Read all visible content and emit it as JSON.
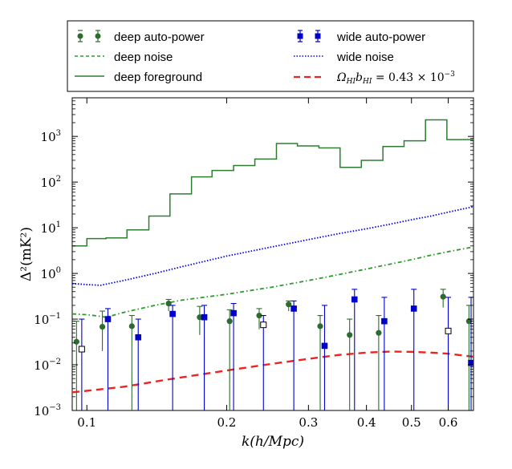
{
  "chart_data": {
    "type": "line",
    "title": "",
    "xlabel": "k(h/Mpc)",
    "ylabel": "Δ²(mK²)",
    "xscale": "log",
    "yscale": "log",
    "xlim": [
      0.093,
      0.68
    ],
    "ylim": [
      0.001,
      7000
    ],
    "x_ticks": [
      {
        "value": 0.1,
        "label": "0.1"
      },
      {
        "value": 0.2,
        "label": "0.2"
      },
      {
        "value": 0.3,
        "label": "0.3"
      },
      {
        "value": 0.4,
        "label": "0.4"
      },
      {
        "value": 0.5,
        "label": "0.5"
      },
      {
        "value": 0.6,
        "label": "0.6"
      }
    ],
    "y_ticks": [
      {
        "value": 0.001,
        "base": "10",
        "exp": "−3"
      },
      {
        "value": 0.01,
        "base": "10",
        "exp": "−2"
      },
      {
        "value": 0.1,
        "base": "10",
        "exp": "−1"
      },
      {
        "value": 1,
        "base": "10",
        "exp": "0"
      },
      {
        "value": 10,
        "base": "10",
        "exp": "1"
      },
      {
        "value": 100,
        "base": "10",
        "exp": "2"
      },
      {
        "value": 1000,
        "base": "10",
        "exp": "3"
      }
    ],
    "legend": {
      "position": "top (outside, above plot)",
      "entries": [
        {
          "label": "deep auto-power",
          "series": "deep_auto"
        },
        {
          "label": "deep noise",
          "series": "deep_noise"
        },
        {
          "label": "deep foreground",
          "series": "deep_foreground"
        },
        {
          "label": "wide auto-power",
          "series": "wide_auto"
        },
        {
          "label": "wide noise",
          "series": "wide_noise"
        },
        {
          "label": "Ω_HI b_HI = 0.43 × 10^−3",
          "series": "model"
        }
      ]
    },
    "series": [
      {
        "name": "deep foreground",
        "key": "deep_foreground",
        "kind": "step",
        "color": "#2e7d32",
        "edges": [
          0.093,
          0.1,
          0.11,
          0.122,
          0.136,
          0.151,
          0.168,
          0.186,
          0.207,
          0.23,
          0.256,
          0.284,
          0.316,
          0.351,
          0.39,
          0.434,
          0.482,
          0.536,
          0.596,
          0.68
        ],
        "values": [
          4,
          5.8,
          6,
          9,
          18,
          55,
          130,
          180,
          230,
          320,
          700,
          620,
          560,
          210,
          300,
          600,
          800,
          2300,
          850,
          900
        ]
      },
      {
        "name": "wide noise",
        "key": "wide_noise",
        "kind": "line",
        "style": "dotted",
        "color": "#0000ee",
        "x": [
          0.093,
          0.1,
          0.107,
          0.12,
          0.14,
          0.16,
          0.2,
          0.25,
          0.3,
          0.35,
          0.4,
          0.45,
          0.5,
          0.55,
          0.6,
          0.68
        ],
        "values": [
          0.6,
          0.57,
          0.55,
          0.7,
          1.0,
          1.4,
          2.4,
          3.8,
          5.5,
          7.5,
          9.5,
          12,
          15,
          18,
          22,
          29
        ]
      },
      {
        "name": "deep noise",
        "key": "deep_noise",
        "kind": "line",
        "style": "dashdot",
        "color": "#2e9a2e",
        "x": [
          0.093,
          0.1,
          0.105,
          0.11,
          0.12,
          0.14,
          0.16,
          0.2,
          0.25,
          0.3,
          0.35,
          0.4,
          0.45,
          0.5,
          0.55,
          0.6,
          0.68
        ],
        "values": [
          0.13,
          0.125,
          0.118,
          0.11,
          0.14,
          0.2,
          0.26,
          0.35,
          0.5,
          0.7,
          0.95,
          1.25,
          1.6,
          2.0,
          2.5,
          3.0,
          3.8
        ]
      },
      {
        "name": "Ω_HI b_HI = 0.43 × 10^−3",
        "key": "model",
        "kind": "line",
        "style": "dashed",
        "color": "#ee2222",
        "x": [
          0.093,
          0.1,
          0.12,
          0.15,
          0.2,
          0.25,
          0.3,
          0.35,
          0.4,
          0.45,
          0.5,
          0.55,
          0.6,
          0.68
        ],
        "values": [
          0.0025,
          0.0027,
          0.0033,
          0.0048,
          0.0075,
          0.0105,
          0.0135,
          0.0165,
          0.0185,
          0.0195,
          0.0192,
          0.0185,
          0.0175,
          0.015
        ]
      },
      {
        "name": "deep auto-power",
        "key": "deep_auto",
        "kind": "errorbar",
        "marker": "circle",
        "color": "#2e6b2e",
        "points": [
          {
            "x": 0.095,
            "y": 0.032,
            "lo": 0.001,
            "hi": 0.09
          },
          {
            "x": 0.108,
            "y": 0.068,
            "lo": 0.02,
            "hi": 0.15
          },
          {
            "x": 0.125,
            "y": 0.07,
            "lo": 0.001,
            "hi": 0.12
          },
          {
            "x": 0.15,
            "y": 0.22,
            "lo": 0.15,
            "hi": 0.27
          },
          {
            "x": 0.175,
            "y": 0.11,
            "lo": 0.045,
            "hi": 0.19
          },
          {
            "x": 0.203,
            "y": 0.09,
            "lo": 0.001,
            "hi": 0.16
          },
          {
            "x": 0.235,
            "y": 0.12,
            "lo": 0.06,
            "hi": 0.17
          },
          {
            "x": 0.272,
            "y": 0.21,
            "lo": 0.15,
            "hi": 0.25
          },
          {
            "x": 0.318,
            "y": 0.07,
            "lo": 0.001,
            "hi": 0.12
          },
          {
            "x": 0.368,
            "y": 0.045,
            "lo": 0.001,
            "hi": 0.1
          },
          {
            "x": 0.425,
            "y": 0.05,
            "lo": 0.001,
            "hi": 0.12
          },
          {
            "x": 0.585,
            "y": 0.31,
            "lo": 0.18,
            "hi": 0.45
          },
          {
            "x": 0.665,
            "y": 0.09,
            "lo": 0.001,
            "hi": 0.2
          }
        ]
      },
      {
        "name": "wide auto-power",
        "key": "wide_auto",
        "kind": "errorbar",
        "marker": "square",
        "color": "#0000cc",
        "points": [
          {
            "x": 0.0975,
            "y": 0.022,
            "lo": 0.001,
            "hi": 0.1,
            "open": true
          },
          {
            "x": 0.111,
            "y": 0.1,
            "lo": 0.001,
            "hi": 0.17
          },
          {
            "x": 0.129,
            "y": 0.04,
            "lo": 0.001,
            "hi": 0.1
          },
          {
            "x": 0.153,
            "y": 0.13,
            "lo": 0.001,
            "hi": 0.2
          },
          {
            "x": 0.179,
            "y": 0.11,
            "lo": 0.001,
            "hi": 0.2
          },
          {
            "x": 0.207,
            "y": 0.135,
            "lo": 0.001,
            "hi": 0.22
          },
          {
            "x": 0.24,
            "y": 0.075,
            "lo": 0.001,
            "hi": 0.12,
            "open": true
          },
          {
            "x": 0.279,
            "y": 0.17,
            "lo": 0.001,
            "hi": 0.25
          },
          {
            "x": 0.325,
            "y": 0.026,
            "lo": 0.001,
            "hi": 0.2
          },
          {
            "x": 0.377,
            "y": 0.27,
            "lo": 0.001,
            "hi": 0.45
          },
          {
            "x": 0.437,
            "y": 0.09,
            "lo": 0.001,
            "hi": 0.3
          },
          {
            "x": 0.506,
            "y": 0.17,
            "lo": 0.001,
            "hi": 0.45
          },
          {
            "x": 0.6,
            "y": 0.055,
            "lo": 0.001,
            "hi": 0.3,
            "open": true
          },
          {
            "x": 0.672,
            "y": 0.011,
            "lo": 0.001,
            "hi": 0.3
          }
        ]
      }
    ]
  }
}
